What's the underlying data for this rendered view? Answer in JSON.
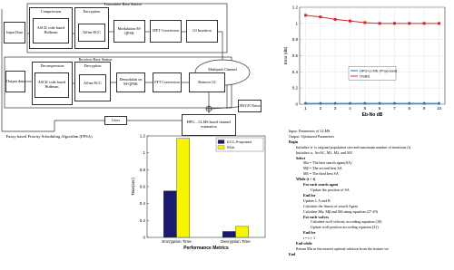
{
  "diagram": {
    "transmitter": "Transmitter Base Station",
    "receiver": "Receiver Base Station",
    "tx": [
      "Input Data",
      "Compression",
      "ASCII code based Huffman",
      "Encryption",
      "Affine ECC",
      "Modulation M-QPSK",
      "IFFT Conversion",
      "GI Insertion"
    ],
    "rx": [
      "Output data",
      "Decompression",
      "ASCII code based Huffman",
      "Decryption",
      "Affine ECC",
      "Demodulati on M-QPSK",
      "FFT Conversion",
      "Remove GI"
    ],
    "channel": "Multipath Channel",
    "noise": "AWGN Noise",
    "estimation": "HPG – LLMS based channel estimation",
    "users": "Users",
    "scheduler": "Fuzzy based Priority Scheduling Algorithm (FPSA)"
  },
  "chart_data": [
    {
      "type": "line",
      "y_label": "Error (dB)",
      "x_label": "Eb-No dB",
      "x": [
        1,
        2,
        3,
        4,
        5,
        6,
        7,
        8,
        9,
        10
      ],
      "xlim": [
        0.6,
        10.4
      ],
      "xticks": [
        1,
        2,
        3,
        4,
        5,
        6,
        7,
        8,
        9,
        10
      ],
      "ylim": [
        0,
        1.2
      ],
      "yticks": [
        0,
        0.2,
        0.4,
        0.6,
        0.8,
        1,
        1.2
      ],
      "grid": true,
      "legend": "center",
      "series": [
        {
          "name": "HPG-LLMS (Proposed)",
          "color": "#1f77b4",
          "values": [
            0.01,
            0.01,
            0.01,
            0.01,
            0.01,
            0.01,
            0.01,
            0.01,
            0.01,
            0.01
          ]
        },
        {
          "name": "OSBS",
          "color": "#d62728",
          "values": [
            1.1,
            1.08,
            1.05,
            1.03,
            1.01,
            1.0,
            1.0,
            1.0,
            1.0,
            1.0
          ]
        }
      ]
    },
    {
      "type": "bar",
      "y_label": "Time(sec)",
      "x_label": "Performance Metrics",
      "categories": [
        "Encryption Time",
        "Decryption Time"
      ],
      "ylim": [
        0,
        1.2
      ],
      "yticks": [
        0,
        0.2,
        0.4,
        0.6,
        0.8,
        1,
        1.2
      ],
      "grid": false,
      "legend": "upper right",
      "series": [
        {
          "name": "ECC-Proposed",
          "color": "#1a1a6e",
          "values": [
            0.55,
            0.07
          ]
        },
        {
          "name": "RSA",
          "color": "#f5f500",
          "values": [
            1.17,
            0.13
          ]
        }
      ]
    }
  ],
  "algorithm": {
    "lines": [
      "Input: Parameters of LLMS",
      "Output: Optimized Parameters",
      "Begin",
      "Initialize 'n' is original population size and maximum number of iterations (t)",
      "Initialize ω, ArrAC, M1, M2, and M3",
      "Select",
      "Mα = The best search agent(SA)",
      "Mβ = The second best SA",
      "Mδ = The third best SA",
      "While (t < t)",
      "For each search agent",
      "Update the position of SA",
      "End for",
      "Update J, A and B",
      "Calculate the fitness of search Agent",
      "Calculate Mα, Mβ and Mδ using equation (27-29)",
      "For each wolves",
      "Calculate wolf velocity according equation (30)",
      "Update wolf position according equation (31)",
      "End for",
      "t = t + 1",
      "End while",
      "Return Mα as the nearest optimal solution from the feature set",
      "End"
    ]
  }
}
